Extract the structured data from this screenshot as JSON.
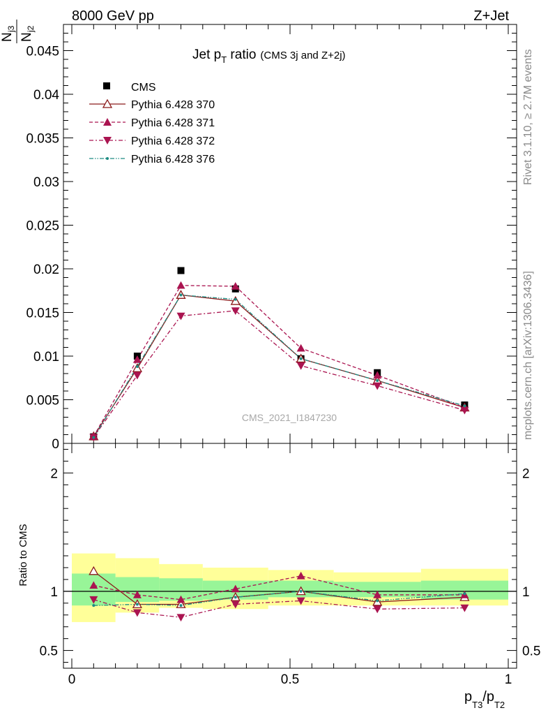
{
  "header": {
    "left": "8000 GeV pp",
    "right": "Z+Jet"
  },
  "side_labels": {
    "top": "Rivet 3.1.10, ≥ 2.7M events",
    "bottom": "mcplots.cern.ch [arXiv:1306.3436]"
  },
  "watermark": "CMS_2021_I1847230",
  "colors": {
    "cms": "#000000",
    "p370": "#8b1a1a",
    "p371": "#aa1450",
    "p372": "#aa1450",
    "p376": "#1e8c82",
    "band_inner": "#98f598",
    "band_outer": "#ffff99"
  },
  "chart_data": [
    {
      "type": "scatter",
      "title": "Jet p_T ratio",
      "title_main": "Jet p",
      "title_sub": "T",
      "title_rest": " ratio",
      "title_note": "(CMS 3j and Z+2j)",
      "ylabel_num": "N",
      "ylabel_num_sub": "j3",
      "ylabel_den": "N",
      "ylabel_den_sub": "j2",
      "xlim": [
        0,
        1
      ],
      "ylim": [
        0,
        0.048
      ],
      "yticks": [
        0,
        0.005,
        0.01,
        0.015,
        0.02,
        0.025,
        0.03,
        0.035,
        0.04,
        0.045
      ],
      "ytick_labels": [
        "0",
        "0.005",
        "0.01",
        "0.015",
        "0.02",
        "0.025",
        "0.03",
        "0.035",
        "0.04",
        "0.045"
      ],
      "legend_position": "top-left",
      "x": [
        0.05,
        0.15,
        0.25,
        0.375,
        0.525,
        0.7,
        0.9
      ],
      "series": [
        {
          "name": "CMS",
          "key": "cms",
          "marker": "square",
          "values": [
            0.00075,
            0.01,
            0.0198,
            0.0177,
            0.0097,
            0.0081,
            0.0044
          ]
        },
        {
          "name": "Pythia 6.428 370",
          "key": "p370",
          "marker": "triangle-up-open",
          "line": "solid",
          "values": [
            0.0008,
            0.0086,
            0.017,
            0.0163,
            0.0097,
            0.0072,
            0.0041
          ]
        },
        {
          "name": "Pythia 6.428 371",
          "key": "p371",
          "marker": "triangle-up",
          "line": "dashed",
          "values": [
            0.0008,
            0.0096,
            0.0181,
            0.018,
            0.0109,
            0.0078,
            0.0041
          ]
        },
        {
          "name": "Pythia 6.428 372",
          "key": "p372",
          "marker": "triangle-down",
          "line": "dashdot",
          "values": [
            0.0007,
            0.0078,
            0.0146,
            0.0152,
            0.0089,
            0.0066,
            0.0038
          ]
        },
        {
          "name": "Pythia 6.428 376",
          "key": "p376",
          "marker": "dot",
          "line": "dashdotdot",
          "values": [
            0.00068,
            0.0088,
            0.017,
            0.0165,
            0.0097,
            0.0072,
            0.0043
          ]
        }
      ]
    },
    {
      "type": "scatter",
      "ylabel": "Ratio to CMS",
      "xlabel_main": "p",
      "xlabel_sub1": "T3",
      "xlabel_slash": "/p",
      "xlabel_sub2": "T2",
      "xlim": [
        0,
        1
      ],
      "ylim": [
        0.35,
        2.25
      ],
      "yticks": [
        0.5,
        1,
        2
      ],
      "ytick_labels": [
        "0.5",
        "1",
        "2"
      ],
      "xticks": [
        0,
        0.5,
        1
      ],
      "xtick_labels": [
        "0",
        "0.5",
        "1"
      ],
      "band_edges": [
        0,
        0.1,
        0.2,
        0.3,
        0.45,
        0.6,
        0.8,
        1.0
      ],
      "band_inner": [
        [
          0.88,
          1.15
        ],
        [
          0.91,
          1.12
        ],
        [
          0.92,
          1.11
        ],
        [
          0.93,
          1.09
        ],
        [
          0.95,
          1.09
        ],
        [
          0.95,
          1.08
        ],
        [
          0.93,
          1.09
        ]
      ],
      "band_outer": [
        [
          0.74,
          1.32
        ],
        [
          0.82,
          1.28
        ],
        [
          0.86,
          1.23
        ],
        [
          0.85,
          1.2
        ],
        [
          0.88,
          1.18
        ],
        [
          0.88,
          1.16
        ],
        [
          0.88,
          1.19
        ]
      ],
      "x": [
        0.05,
        0.15,
        0.25,
        0.375,
        0.525,
        0.7,
        0.9
      ],
      "series": [
        {
          "key": "p370",
          "marker": "triangle-up-open",
          "line": "solid",
          "values": [
            1.17,
            0.89,
            0.89,
            0.95,
            1.0,
            0.91,
            0.95
          ]
        },
        {
          "key": "p371",
          "marker": "triangle-up",
          "line": "dashed",
          "values": [
            1.05,
            0.97,
            0.93,
            1.02,
            1.13,
            0.97,
            0.97
          ]
        },
        {
          "key": "p372",
          "marker": "triangle-down",
          "line": "dashdot",
          "values": [
            0.93,
            0.82,
            0.78,
            0.89,
            0.92,
            0.85,
            0.86
          ]
        },
        {
          "key": "p376",
          "marker": "dot",
          "line": "dashdotdot",
          "values": [
            0.88,
            0.89,
            0.88,
            0.95,
            1.0,
            0.92,
            0.98
          ]
        }
      ]
    }
  ]
}
